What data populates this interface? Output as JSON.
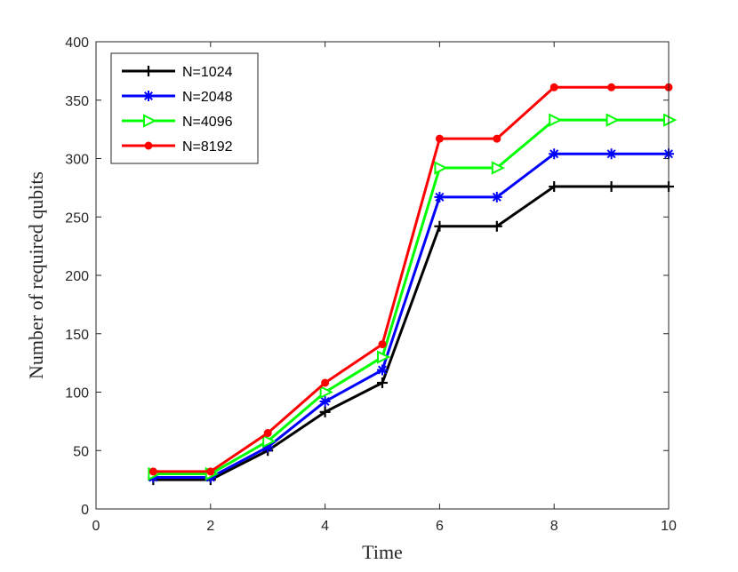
{
  "chart_data": {
    "type": "line",
    "title": "",
    "xlabel": "Time",
    "ylabel": "Number of required qubits",
    "xlim": [
      0,
      10
    ],
    "ylim": [
      0,
      400
    ],
    "xticks": [
      0,
      2,
      4,
      6,
      8,
      10
    ],
    "yticks": [
      0,
      50,
      100,
      150,
      200,
      250,
      300,
      350,
      400
    ],
    "grid": false,
    "legend_position": "top-left",
    "x": [
      1,
      2,
      3,
      4,
      5,
      6,
      7,
      8,
      9,
      10
    ],
    "series": [
      {
        "name": "N=1024",
        "color": "#000000",
        "marker": "plus",
        "values": [
          25,
          25,
          50,
          83,
          108,
          242,
          242,
          276,
          276,
          276
        ]
      },
      {
        "name": "N=2048",
        "color": "#0000ff",
        "marker": "asterisk",
        "values": [
          27,
          27,
          53,
          92,
          119,
          267,
          267,
          304,
          304,
          304
        ]
      },
      {
        "name": "N=4096",
        "color": "#00ff00",
        "marker": "triangle-right",
        "values": [
          30,
          30,
          58,
          100,
          130,
          292,
          292,
          333,
          333,
          333
        ]
      },
      {
        "name": "N=8192",
        "color": "#ff0000",
        "marker": "dot",
        "values": [
          32,
          32,
          65,
          108,
          141,
          317,
          317,
          361,
          361,
          361
        ]
      }
    ]
  }
}
